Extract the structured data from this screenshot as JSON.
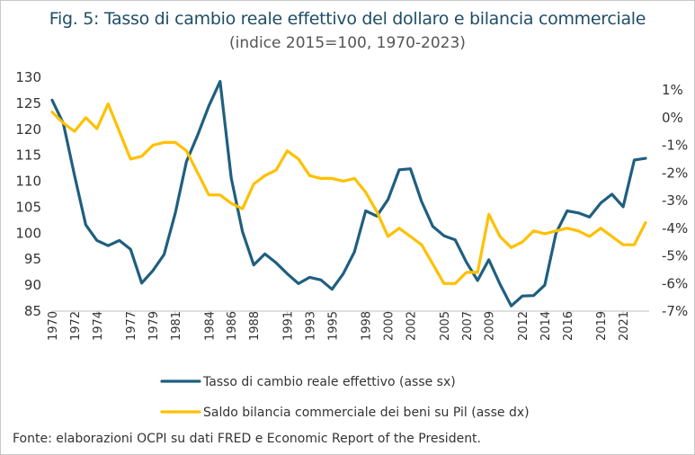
{
  "title": "Fig. 5: Tasso di cambio reale effettivo del dollaro e bilancia commerciale",
  "subtitle": "(indice 2015=100, 1970-2023)",
  "source": "Fonte: elaborazioni OCPI su dati FRED e Economic Report of the President.",
  "chart_data": {
    "type": "line",
    "x_tick_labels": [
      "1970",
      "1972",
      "1974",
      "1977",
      "1979",
      "1981",
      "1984",
      "1986",
      "1988",
      "1991",
      "1993",
      "1995",
      "1998",
      "2000",
      "2002",
      "2005",
      "2007",
      "2009",
      "2012",
      "2014",
      "2016",
      "2019",
      "2021"
    ],
    "left_axis": {
      "ylim": [
        85,
        130
      ],
      "ticks": [
        "130",
        "125",
        "120",
        "115",
        "110",
        "105",
        "100",
        "95",
        "90",
        "85"
      ]
    },
    "right_axis": {
      "ylim": [
        -7,
        1
      ],
      "ticks": [
        "1%",
        "0%",
        "-1%",
        "-2%",
        "-3%",
        "-4%",
        "-5%",
        "-6%",
        "-7%"
      ]
    },
    "series": [
      {
        "name": "Tasso di cambio reale effettivo (asse sx)",
        "axis": "left",
        "color": "#1f5f7f",
        "x": [
          1970,
          1971,
          1972,
          1973,
          1974,
          1975,
          1976,
          1977,
          1978,
          1979,
          1980,
          1981,
          1982,
          1983,
          1984,
          1985,
          1986,
          1987,
          1988,
          1989,
          1990,
          1991,
          1992,
          1993,
          1994,
          1995,
          1996,
          1997,
          1998,
          1999,
          2000,
          2001,
          2002,
          2003,
          2004,
          2005,
          2006,
          2007,
          2008,
          2009,
          2010,
          2011,
          2012,
          2013,
          2014,
          2015,
          2016,
          2017,
          2018,
          2019,
          2020,
          2021,
          2022,
          2023
        ],
        "values": [
          125.6,
          121.1,
          111.1,
          101.6,
          98.6,
          97.6,
          98.6,
          96.9,
          90.4,
          92.8,
          95.9,
          103.9,
          113.8,
          118.9,
          124.5,
          129.2,
          110.6,
          100.3,
          93.9,
          96.0,
          94.3,
          92.2,
          90.3,
          91.5,
          91.0,
          89.2,
          92.2,
          96.4,
          104.3,
          103.3,
          106.5,
          112.2,
          112.4,
          106.1,
          101.3,
          99.5,
          98.7,
          94.4,
          90.9,
          94.9,
          90.2,
          86.0,
          87.9,
          88.0,
          90.0,
          100.0,
          104.3,
          103.9,
          103.1,
          105.8,
          107.5,
          105.1,
          114.1,
          114.4
        ]
      },
      {
        "name": "Saldo bilancia commerciale dei beni su Pil (asse dx)",
        "axis": "right",
        "color": "#ffc000",
        "x": [
          1970,
          1971,
          1972,
          1973,
          1974,
          1975,
          1976,
          1977,
          1978,
          1979,
          1980,
          1981,
          1982,
          1983,
          1984,
          1985,
          1986,
          1987,
          1988,
          1989,
          1990,
          1991,
          1992,
          1993,
          1994,
          1995,
          1996,
          1997,
          1998,
          1999,
          2000,
          2001,
          2002,
          2003,
          2004,
          2005,
          2006,
          2007,
          2008,
          2009,
          2010,
          2011,
          2012,
          2013,
          2014,
          2015,
          2016,
          2017,
          2018,
          2019,
          2020,
          2021,
          2022,
          2023
        ],
        "values": [
          0.2,
          -0.2,
          -0.5,
          0.0,
          -0.4,
          0.5,
          -0.5,
          -1.5,
          -1.4,
          -1.0,
          -0.9,
          -0.9,
          -1.2,
          -2.0,
          -2.8,
          -2.8,
          -3.1,
          -3.3,
          -2.4,
          -2.1,
          -1.9,
          -1.2,
          -1.5,
          -2.1,
          -2.2,
          -2.2,
          -2.3,
          -2.2,
          -2.7,
          -3.4,
          -4.3,
          -4.0,
          -4.3,
          -4.6,
          -5.3,
          -6.0,
          -6.0,
          -5.6,
          -5.6,
          -3.5,
          -4.3,
          -4.7,
          -4.5,
          -4.1,
          -4.2,
          -4.1,
          -4.0,
          -4.1,
          -4.3,
          -4.0,
          -4.3,
          -4.6,
          -4.6,
          -3.8
        ]
      }
    ],
    "grid": false,
    "legend_position": "bottom"
  }
}
